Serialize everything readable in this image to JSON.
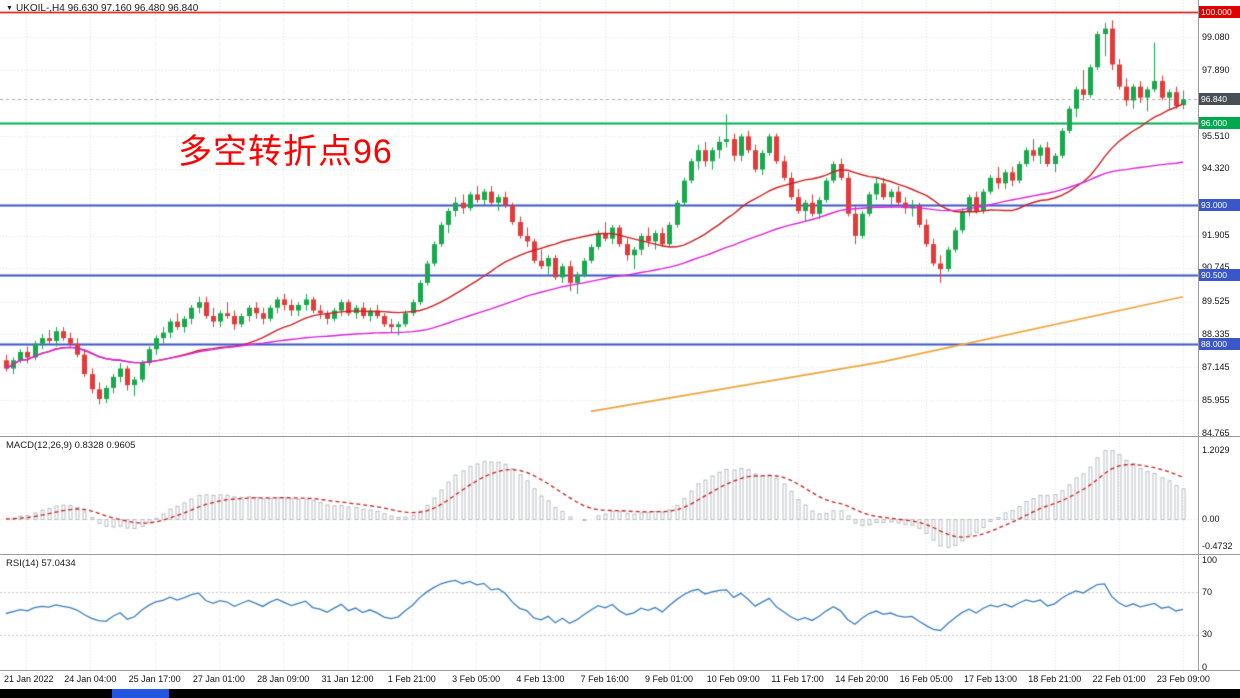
{
  "window": {
    "title": "UKOIL-,H4 96.630 97.160 96.480 96.840",
    "marker": "▼"
  },
  "annotation": {
    "text": "多空转折点96",
    "color": "#ff0000"
  },
  "colors": {
    "candle_up": "#18a94d",
    "candle_down": "#e23b3b",
    "grid": "#e4e4e4",
    "last_price_line": "#aaaaaa",
    "separator": "#9b9b9b"
  },
  "chart_data": {
    "type": "candlestick",
    "symbol": "UKOIL-",
    "timeframe": "H4",
    "ohlc_display": {
      "open": "96.630",
      "high": "97.160",
      "low": "96.480",
      "close": "96.840"
    },
    "y_range": [
      84.4,
      100.4
    ],
    "grid": "dotted",
    "legend_position": "none",
    "time_ticks": [
      "21 Jan 2022",
      "24 Jan 04:00",
      "25 Jan 17:00",
      "27 Jan 01:00",
      "28 Jan 09:00",
      "31 Jan 12:00",
      "1 Feb 21:00",
      "3 Feb 05:00",
      "4 Feb 13:00",
      "7 Feb 16:00",
      "9 Feb 01:00",
      "10 Feb 09:00",
      "11 Feb 17:00",
      "14 Feb 20:00",
      "16 Feb 05:00",
      "17 Feb 13:00",
      "18 Feb 21:00",
      "22 Feb 01:00",
      "23 Feb 09:00"
    ],
    "price_ticks": [
      {
        "label": "99.080",
        "price": 99.08
      },
      {
        "label": "97.890",
        "price": 97.89
      },
      {
        "label": "95.510",
        "price": 95.51
      },
      {
        "label": "94.320",
        "price": 94.32
      },
      {
        "label": "91.905",
        "price": 91.905
      },
      {
        "label": "90.745",
        "price": 90.745
      },
      {
        "label": "89.525",
        "price": 89.525
      },
      {
        "label": "88.335",
        "price": 88.335
      },
      {
        "label": "87.145",
        "price": 87.145
      },
      {
        "label": "85.955",
        "price": 85.955
      },
      {
        "label": "84.765",
        "price": 84.765
      }
    ],
    "price_badges": [
      {
        "label": "100.000",
        "price": 100.0,
        "bg": "#e00000"
      },
      {
        "label": "96.840",
        "price": 96.84,
        "bg": "#4a4f55"
      },
      {
        "label": "96.000",
        "price": 96.0,
        "bg": "#00a84f"
      },
      {
        "label": "93.000",
        "price": 93.0,
        "bg": "#3a56c8"
      },
      {
        "label": "90.500",
        "price": 90.5,
        "bg": "#3a56c8"
      },
      {
        "label": "88.000",
        "price": 88.0,
        "bg": "#3a56c8"
      }
    ],
    "levels": [
      {
        "price": 100.0,
        "color": "#d40000",
        "width": 1.5
      },
      {
        "price": 96.0,
        "color": "#00b050",
        "width": 2
      },
      {
        "price": 93.0,
        "color": "#3a56c8",
        "width": 2
      },
      {
        "price": 90.5,
        "color": "#3a56c8",
        "width": 2
      },
      {
        "price": 88.0,
        "color": "#3a56c8",
        "width": 2
      }
    ],
    "last_price": 96.84,
    "candles": [
      [
        87.4,
        87.6,
        87.0,
        87.1
      ],
      [
        87.1,
        87.5,
        86.9,
        87.4
      ],
      [
        87.4,
        87.8,
        87.3,
        87.7
      ],
      [
        87.7,
        87.9,
        87.3,
        87.5
      ],
      [
        87.5,
        88.1,
        87.4,
        88.0
      ],
      [
        88.0,
        88.35,
        87.8,
        88.2
      ],
      [
        88.2,
        88.5,
        88.0,
        88.1
      ],
      [
        88.1,
        88.6,
        87.9,
        88.45
      ],
      [
        88.45,
        88.6,
        88.1,
        88.2
      ],
      [
        88.2,
        88.4,
        87.9,
        88.0
      ],
      [
        88.0,
        88.2,
        87.5,
        87.6
      ],
      [
        87.6,
        87.8,
        86.8,
        86.9
      ],
      [
        86.9,
        87.1,
        86.2,
        86.35
      ],
      [
        86.35,
        86.6,
        85.8,
        86.0
      ],
      [
        86.0,
        86.5,
        85.85,
        86.4
      ],
      [
        86.4,
        86.9,
        86.2,
        86.8
      ],
      [
        86.8,
        87.3,
        86.6,
        87.1
      ],
      [
        87.1,
        87.2,
        86.3,
        86.5
      ],
      [
        86.5,
        86.8,
        86.1,
        86.7
      ],
      [
        86.7,
        87.4,
        86.6,
        87.3
      ],
      [
        87.3,
        87.9,
        87.2,
        87.8
      ],
      [
        87.8,
        88.3,
        87.6,
        88.2
      ],
      [
        88.2,
        88.6,
        88.0,
        88.4
      ],
      [
        88.4,
        88.9,
        88.2,
        88.8
      ],
      [
        88.8,
        89.1,
        88.5,
        88.6
      ],
      [
        88.6,
        89.0,
        88.4,
        88.9
      ],
      [
        88.9,
        89.4,
        88.7,
        89.3
      ],
      [
        89.3,
        89.7,
        89.1,
        89.5
      ],
      [
        89.5,
        89.7,
        88.9,
        89.0
      ],
      [
        89.0,
        89.3,
        88.6,
        88.8
      ],
      [
        88.8,
        89.2,
        88.6,
        89.1
      ],
      [
        89.1,
        89.5,
        88.9,
        89.0
      ],
      [
        89.0,
        89.2,
        88.5,
        88.7
      ],
      [
        88.7,
        89.1,
        88.6,
        89.0
      ],
      [
        89.0,
        89.4,
        88.8,
        89.3
      ],
      [
        89.3,
        89.5,
        88.9,
        89.1
      ],
      [
        89.1,
        89.3,
        88.7,
        88.9
      ],
      [
        88.9,
        89.4,
        88.8,
        89.3
      ],
      [
        89.3,
        89.7,
        89.1,
        89.6
      ],
      [
        89.6,
        89.8,
        89.2,
        89.4
      ],
      [
        89.4,
        89.6,
        89.0,
        89.2
      ],
      [
        89.2,
        89.5,
        89.0,
        89.4
      ],
      [
        89.4,
        89.8,
        89.2,
        89.6
      ],
      [
        89.6,
        89.7,
        89.1,
        89.2
      ],
      [
        89.2,
        89.4,
        88.9,
        89.1
      ],
      [
        89.1,
        89.2,
        88.7,
        88.9
      ],
      [
        88.9,
        89.3,
        88.8,
        89.2
      ],
      [
        89.2,
        89.6,
        89.0,
        89.5
      ],
      [
        89.5,
        89.6,
        89.0,
        89.1
      ],
      [
        89.1,
        89.4,
        88.9,
        89.3
      ],
      [
        89.3,
        89.5,
        88.9,
        89.0
      ],
      [
        89.0,
        89.3,
        88.8,
        89.2
      ],
      [
        89.2,
        89.4,
        88.9,
        89.0
      ],
      [
        89.0,
        89.1,
        88.6,
        88.7
      ],
      [
        88.7,
        88.9,
        88.4,
        88.6
      ],
      [
        88.6,
        88.8,
        88.3,
        88.7
      ],
      [
        88.7,
        89.2,
        88.6,
        89.1
      ],
      [
        89.1,
        89.6,
        89.0,
        89.5
      ],
      [
        89.5,
        90.3,
        89.4,
        90.2
      ],
      [
        90.2,
        91.0,
        90.1,
        90.9
      ],
      [
        90.9,
        91.7,
        90.8,
        91.6
      ],
      [
        91.6,
        92.4,
        91.5,
        92.3
      ],
      [
        92.3,
        92.9,
        92.0,
        92.8
      ],
      [
        92.8,
        93.3,
        92.6,
        93.1
      ],
      [
        93.1,
        93.4,
        92.7,
        92.9
      ],
      [
        92.9,
        93.5,
        92.8,
        93.4
      ],
      [
        93.4,
        93.7,
        93.1,
        93.2
      ],
      [
        93.2,
        93.6,
        93.0,
        93.5
      ],
      [
        93.5,
        93.7,
        93.0,
        93.1
      ],
      [
        93.1,
        93.4,
        92.8,
        93.3
      ],
      [
        93.3,
        93.5,
        92.9,
        93.0
      ],
      [
        93.0,
        93.1,
        92.3,
        92.4
      ],
      [
        92.4,
        92.6,
        91.8,
        91.9
      ],
      [
        91.9,
        92.2,
        91.5,
        91.7
      ],
      [
        91.7,
        91.8,
        90.9,
        91.0
      ],
      [
        91.0,
        91.4,
        90.7,
        90.8
      ],
      [
        90.8,
        91.2,
        90.5,
        91.1
      ],
      [
        91.1,
        91.2,
        90.3,
        90.4
      ],
      [
        90.4,
        90.9,
        90.2,
        90.8
      ],
      [
        90.8,
        91.0,
        89.9,
        90.2
      ],
      [
        90.2,
        90.6,
        89.8,
        90.5
      ],
      [
        90.5,
        91.1,
        90.4,
        91.0
      ],
      [
        91.0,
        91.6,
        90.9,
        91.5
      ],
      [
        91.5,
        92.1,
        91.4,
        92.0
      ],
      [
        92.0,
        92.4,
        91.7,
        91.8
      ],
      [
        91.8,
        92.3,
        91.6,
        92.2
      ],
      [
        92.2,
        92.3,
        91.5,
        91.6
      ],
      [
        91.6,
        91.8,
        91.0,
        91.2
      ],
      [
        91.2,
        91.5,
        90.7,
        91.4
      ],
      [
        91.4,
        92.0,
        91.2,
        91.9
      ],
      [
        91.9,
        92.2,
        91.5,
        91.7
      ],
      [
        91.7,
        92.1,
        91.4,
        92.0
      ],
      [
        92.0,
        92.2,
        91.5,
        91.6
      ],
      [
        91.6,
        92.4,
        91.5,
        92.3
      ],
      [
        92.3,
        93.2,
        92.2,
        93.1
      ],
      [
        93.1,
        94.0,
        93.0,
        93.9
      ],
      [
        93.9,
        94.7,
        93.8,
        94.6
      ],
      [
        94.6,
        95.2,
        94.3,
        95.0
      ],
      [
        95.0,
        95.3,
        94.4,
        94.6
      ],
      [
        94.6,
        95.1,
        94.3,
        95.0
      ],
      [
        95.0,
        95.5,
        94.7,
        95.3
      ],
      [
        95.3,
        96.3,
        95.1,
        95.4
      ],
      [
        95.4,
        95.6,
        94.6,
        94.8
      ],
      [
        94.8,
        95.6,
        94.6,
        95.5
      ],
      [
        95.5,
        95.7,
        94.9,
        95.0
      ],
      [
        95.0,
        95.2,
        94.2,
        94.3
      ],
      [
        94.3,
        95.0,
        94.1,
        94.9
      ],
      [
        94.9,
        95.6,
        94.8,
        95.5
      ],
      [
        95.5,
        95.6,
        94.5,
        94.6
      ],
      [
        94.6,
        94.8,
        93.9,
        94.0
      ],
      [
        94.0,
        94.2,
        93.2,
        93.3
      ],
      [
        93.3,
        93.6,
        92.7,
        92.8
      ],
      [
        92.8,
        93.2,
        92.4,
        93.1
      ],
      [
        93.1,
        93.4,
        92.6,
        92.7
      ],
      [
        92.7,
        93.3,
        92.5,
        93.2
      ],
      [
        93.2,
        94.0,
        93.1,
        93.9
      ],
      [
        93.9,
        94.6,
        93.8,
        94.5
      ],
      [
        94.5,
        94.7,
        93.9,
        94.0
      ],
      [
        94.0,
        94.2,
        92.6,
        92.7
      ],
      [
        92.7,
        93.0,
        91.6,
        91.9
      ],
      [
        91.9,
        92.8,
        91.8,
        92.7
      ],
      [
        92.7,
        93.5,
        92.6,
        93.4
      ],
      [
        93.4,
        94.0,
        93.2,
        93.8
      ],
      [
        93.8,
        94.0,
        93.2,
        93.3
      ],
      [
        93.3,
        93.6,
        92.9,
        93.5
      ],
      [
        93.5,
        93.7,
        93.0,
        93.1
      ],
      [
        93.1,
        93.3,
        92.7,
        92.9
      ],
      [
        92.9,
        93.2,
        92.6,
        93.0
      ],
      [
        93.0,
        93.1,
        92.2,
        92.3
      ],
      [
        92.3,
        92.5,
        91.5,
        91.6
      ],
      [
        91.6,
        91.8,
        90.8,
        90.9
      ],
      [
        90.9,
        91.2,
        90.2,
        90.7
      ],
      [
        90.7,
        91.5,
        90.6,
        91.4
      ],
      [
        91.4,
        92.2,
        91.3,
        92.1
      ],
      [
        92.1,
        92.9,
        92.0,
        92.8
      ],
      [
        92.8,
        93.4,
        92.6,
        93.3
      ],
      [
        93.3,
        93.5,
        92.7,
        92.8
      ],
      [
        92.8,
        93.6,
        92.7,
        93.5
      ],
      [
        93.5,
        94.1,
        93.4,
        94.0
      ],
      [
        94.0,
        94.4,
        93.6,
        93.8
      ],
      [
        93.8,
        94.3,
        93.6,
        94.2
      ],
      [
        94.2,
        94.4,
        93.7,
        93.9
      ],
      [
        93.9,
        94.6,
        93.8,
        94.5
      ],
      [
        94.5,
        95.1,
        94.4,
        95.0
      ],
      [
        95.0,
        95.4,
        94.6,
        94.8
      ],
      [
        94.8,
        95.2,
        94.5,
        95.1
      ],
      [
        95.1,
        95.3,
        94.4,
        94.5
      ],
      [
        94.5,
        94.9,
        94.2,
        94.8
      ],
      [
        94.8,
        95.8,
        94.7,
        95.7
      ],
      [
        95.7,
        96.6,
        95.6,
        96.5
      ],
      [
        96.5,
        97.3,
        96.2,
        97.2
      ],
      [
        97.2,
        97.9,
        96.8,
        97.0
      ],
      [
        97.0,
        98.1,
        96.9,
        98.0
      ],
      [
        98.0,
        99.3,
        97.9,
        99.2
      ],
      [
        99.2,
        99.6,
        98.4,
        99.4
      ],
      [
        99.4,
        99.7,
        97.9,
        98.1
      ],
      [
        98.1,
        98.3,
        97.2,
        97.3
      ],
      [
        97.3,
        97.6,
        96.6,
        96.8
      ],
      [
        96.8,
        97.4,
        96.5,
        97.3
      ],
      [
        97.3,
        97.5,
        96.7,
        96.9
      ],
      [
        96.9,
        97.3,
        96.4,
        97.2
      ],
      [
        97.2,
        98.9,
        97.1,
        97.5
      ],
      [
        97.5,
        97.7,
        96.8,
        96.9
      ],
      [
        96.9,
        97.2,
        96.5,
        97.1
      ],
      [
        97.1,
        97.3,
        96.5,
        96.6
      ],
      [
        96.63,
        97.16,
        96.48,
        96.84
      ]
    ],
    "moving_averages": {
      "fast": {
        "period": 24,
        "color": "#cc2222"
      },
      "slow": {
        "period": 60,
        "color": "#dd22dd"
      },
      "trend": {
        "color": "#f0a43c",
        "points": [
          {
            "index": 82,
            "price": 85.55
          },
          {
            "index": 123,
            "price": 87.35
          },
          {
            "index": 165,
            "price": 89.7
          }
        ]
      }
    },
    "indicators": {
      "macd": {
        "label": "MACD(12,26,9) 0.8328 0.9605",
        "params": [
          12,
          26,
          9
        ],
        "current_values": [
          0.8328,
          0.9605
        ],
        "hist_color": "#b9bdc5",
        "signal_color": "#cc2222",
        "axis_ticks": [
          {
            "label": "1.2029",
            "value": 1.2029
          },
          {
            "label": "0.00",
            "value": 0
          },
          {
            "label": "-0.4732",
            "value": -0.4732
          }
        ]
      },
      "rsi": {
        "label": "RSI(14) 57.0434",
        "period": 14,
        "current_value": 57.0434,
        "color": "#3c7ebf",
        "levels": [
          70,
          30
        ],
        "axis_ticks": [
          {
            "label": "100",
            "value": 100
          },
          {
            "label": "70",
            "value": 70
          },
          {
            "label": "30",
            "value": 30
          },
          {
            "label": "0",
            "value": 0
          }
        ]
      }
    }
  }
}
